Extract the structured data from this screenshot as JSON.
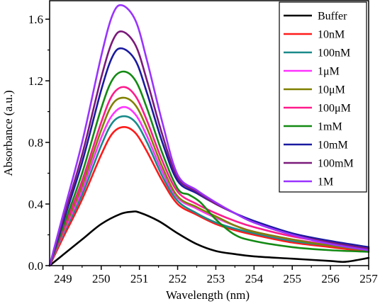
{
  "chart_data": {
    "type": "line",
    "title": "",
    "xlabel": "Wavelength (nm)",
    "ylabel": "Absorbance (a.u.)",
    "xlim": [
      248.65,
      257.0
    ],
    "ylim": [
      0.0,
      1.72
    ],
    "xticks": [
      249,
      250,
      251,
      252,
      253,
      254,
      255,
      256,
      257
    ],
    "yticks": [
      0.0,
      0.4,
      0.8,
      1.2,
      1.6
    ],
    "xtick_labels": [
      "249",
      "250",
      "251",
      "252",
      "253",
      "254",
      "255",
      "256",
      "257"
    ],
    "ytick_labels": [
      "0.0",
      "0.4",
      "0.8",
      "1.2",
      "1.6"
    ],
    "grid": false,
    "legend_position": "top-right",
    "series": [
      {
        "name": "Buffer",
        "color": "#000000",
        "x": [
          248.65,
          249.0,
          249.5,
          250.0,
          250.5,
          250.8,
          251.0,
          251.5,
          252.0,
          252.5,
          253.0,
          253.5,
          254.0,
          255.0,
          256.0,
          256.4,
          257.0
        ],
        "y": [
          0.0,
          0.07,
          0.17,
          0.27,
          0.335,
          0.35,
          0.345,
          0.29,
          0.21,
          0.14,
          0.095,
          0.075,
          0.06,
          0.045,
          0.03,
          0.025,
          0.05
        ]
      },
      {
        "name": "10nM",
        "color": "#ff1a1a",
        "x": [
          248.65,
          249.0,
          249.5,
          250.0,
          250.3,
          250.6,
          250.9,
          251.2,
          251.6,
          252.0,
          252.5,
          253.0,
          253.5,
          254.0,
          255.0,
          256.0,
          257.0
        ],
        "y": [
          0.0,
          0.18,
          0.43,
          0.72,
          0.86,
          0.9,
          0.86,
          0.74,
          0.55,
          0.4,
          0.33,
          0.27,
          0.23,
          0.2,
          0.15,
          0.12,
          0.09
        ]
      },
      {
        "name": "100nM",
        "color": "#1a8a8a",
        "x": [
          248.65,
          249.0,
          249.5,
          250.0,
          250.3,
          250.6,
          250.9,
          251.2,
          251.6,
          252.0,
          252.5,
          253.0,
          253.5,
          254.0,
          255.0,
          256.0,
          257.0
        ],
        "y": [
          0.0,
          0.2,
          0.46,
          0.78,
          0.93,
          0.97,
          0.93,
          0.8,
          0.58,
          0.42,
          0.34,
          0.28,
          0.24,
          0.21,
          0.16,
          0.13,
          0.1
        ]
      },
      {
        "name": "1μM",
        "color": "#ff33ff",
        "x": [
          248.65,
          249.0,
          249.5,
          250.0,
          250.3,
          250.6,
          250.9,
          251.2,
          251.6,
          252.0,
          252.5,
          253.0,
          253.5,
          254.0,
          255.0,
          256.0,
          257.0
        ],
        "y": [
          0.0,
          0.21,
          0.49,
          0.83,
          0.98,
          1.03,
          0.98,
          0.84,
          0.61,
          0.44,
          0.37,
          0.31,
          0.26,
          0.22,
          0.17,
          0.14,
          0.11
        ]
      },
      {
        "name": "10μM",
        "color": "#808000",
        "x": [
          248.65,
          249.0,
          249.5,
          250.0,
          250.3,
          250.6,
          250.9,
          251.2,
          251.6,
          252.0,
          252.5,
          253.0,
          253.5,
          254.0,
          255.0,
          256.0,
          257.0
        ],
        "y": [
          0.0,
          0.22,
          0.52,
          0.88,
          1.05,
          1.09,
          1.04,
          0.89,
          0.64,
          0.45,
          0.38,
          0.32,
          0.26,
          0.22,
          0.17,
          0.13,
          0.1
        ]
      },
      {
        "name": "100μM",
        "color": "#ff1a8c",
        "x": [
          248.65,
          249.0,
          249.5,
          250.0,
          250.3,
          250.6,
          250.9,
          251.2,
          251.6,
          252.0,
          252.5,
          253.0,
          253.5,
          254.0,
          255.0,
          256.0,
          257.0
        ],
        "y": [
          0.0,
          0.23,
          0.55,
          0.93,
          1.11,
          1.16,
          1.1,
          0.94,
          0.68,
          0.48,
          0.4,
          0.34,
          0.29,
          0.25,
          0.19,
          0.15,
          0.11
        ]
      },
      {
        "name": "1mM",
        "color": "#138a13",
        "x": [
          248.65,
          249.0,
          249.5,
          250.0,
          250.3,
          250.6,
          250.9,
          251.2,
          251.6,
          252.0,
          252.3,
          252.6,
          253.0,
          253.5,
          254.0,
          255.0,
          256.0,
          257.0
        ],
        "y": [
          0.0,
          0.25,
          0.6,
          1.02,
          1.21,
          1.26,
          1.2,
          1.02,
          0.73,
          0.5,
          0.46,
          0.41,
          0.3,
          0.2,
          0.16,
          0.12,
          0.1,
          0.09
        ]
      },
      {
        "name": "10mM",
        "color": "#1a1aa0",
        "x": [
          248.65,
          249.0,
          249.5,
          250.0,
          250.3,
          250.55,
          250.9,
          251.2,
          251.6,
          252.0,
          252.5,
          253.0,
          253.5,
          254.0,
          255.0,
          256.0,
          257.0
        ],
        "y": [
          0.0,
          0.28,
          0.67,
          1.14,
          1.36,
          1.41,
          1.33,
          1.12,
          0.8,
          0.55,
          0.47,
          0.4,
          0.34,
          0.29,
          0.21,
          0.16,
          0.12
        ]
      },
      {
        "name": "100mM",
        "color": "#7a1a7a",
        "x": [
          248.65,
          249.0,
          249.5,
          250.0,
          250.3,
          250.55,
          250.9,
          251.2,
          251.6,
          252.0,
          252.5,
          253.0,
          253.5,
          254.0,
          255.0,
          256.0,
          257.0
        ],
        "y": [
          0.0,
          0.3,
          0.72,
          1.22,
          1.46,
          1.52,
          1.43,
          1.2,
          0.85,
          0.57,
          0.48,
          0.4,
          0.34,
          0.28,
          0.2,
          0.15,
          0.11
        ]
      },
      {
        "name": "1M",
        "color": "#9933ff",
        "x": [
          248.65,
          249.0,
          249.5,
          250.0,
          250.3,
          250.55,
          250.9,
          251.2,
          251.6,
          252.0,
          252.5,
          253.0,
          253.5,
          254.0,
          255.0,
          256.0,
          257.0
        ],
        "y": [
          0.0,
          0.33,
          0.8,
          1.36,
          1.63,
          1.69,
          1.59,
          1.33,
          0.93,
          0.59,
          0.49,
          0.41,
          0.34,
          0.28,
          0.2,
          0.14,
          0.1
        ]
      }
    ]
  }
}
